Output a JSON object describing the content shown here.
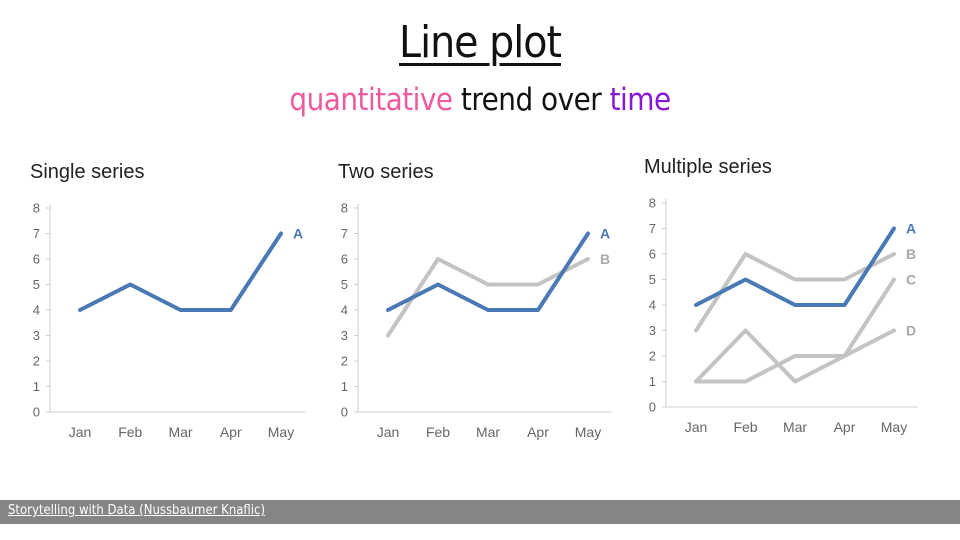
{
  "slide": {
    "title": "Line plot",
    "subtitle_parts": {
      "part1": "quantitative",
      "part2": " trend over ",
      "part3": "time"
    },
    "footer": "Storytelling with Data (Nussbaumer Knaflic)",
    "colors": {
      "accent_pink": "#ee5a9e",
      "accent_purple": "#8a17d8",
      "highlight_series": "#4a79b6",
      "context_series": "#c3c3c3"
    }
  },
  "chart_data": [
    {
      "type": "line",
      "title": "Single series",
      "categories": [
        "Jan",
        "Feb",
        "Mar",
        "Apr",
        "May"
      ],
      "ylim": [
        0,
        8
      ],
      "yticks": [
        0,
        1,
        2,
        3,
        4,
        5,
        6,
        7,
        8
      ],
      "series": [
        {
          "name": "A",
          "values": [
            4,
            5,
            4,
            4,
            7
          ],
          "color": "#4a79b6"
        }
      ]
    },
    {
      "type": "line",
      "title": "Two series",
      "categories": [
        "Jan",
        "Feb",
        "Mar",
        "Apr",
        "May"
      ],
      "ylim": [
        0,
        8
      ],
      "yticks": [
        0,
        1,
        2,
        3,
        4,
        5,
        6,
        7,
        8
      ],
      "series": [
        {
          "name": "B",
          "values": [
            3,
            6,
            5,
            5,
            6
          ],
          "color": "#c3c3c3"
        },
        {
          "name": "A",
          "values": [
            4,
            5,
            4,
            4,
            7
          ],
          "color": "#4a79b6"
        }
      ]
    },
    {
      "type": "line",
      "title": "Multiple series",
      "categories": [
        "Jan",
        "Feb",
        "Mar",
        "Apr",
        "May"
      ],
      "ylim": [
        0,
        8
      ],
      "yticks": [
        0,
        1,
        2,
        3,
        4,
        5,
        6,
        7,
        8
      ],
      "series": [
        {
          "name": "B",
          "values": [
            3,
            6,
            5,
            5,
            6
          ],
          "color": "#c3c3c3"
        },
        {
          "name": "C",
          "values": [
            1,
            1,
            2,
            2,
            5
          ],
          "color": "#c3c3c3"
        },
        {
          "name": "D",
          "values": [
            1,
            3,
            1,
            2,
            3
          ],
          "color": "#c3c3c3"
        },
        {
          "name": "A",
          "values": [
            4,
            5,
            4,
            4,
            7
          ],
          "color": "#4a79b6"
        }
      ]
    }
  ]
}
